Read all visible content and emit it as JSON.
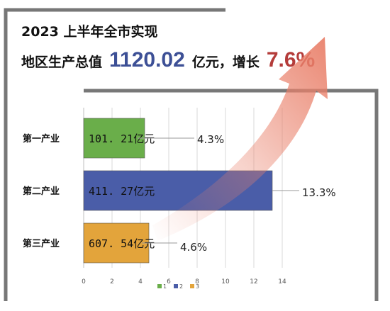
{
  "header": {
    "line1": "2023 上半年全市实现",
    "line2_prefix": "地区生产总值",
    "gdp_value": "1120.02",
    "gdp_unit": "亿元，增长",
    "growth_value": "7.6%"
  },
  "colors": {
    "primary": "#6aae4a",
    "secondary": "#4a5da8",
    "tertiary": "#e3a43b",
    "arrow": "#e9806a",
    "frame": "#777777"
  },
  "chart_data": {
    "type": "bar",
    "orientation": "horizontal",
    "categories": [
      "第一产业",
      "第二产业",
      "第三产业"
    ],
    "values": [
      4.3,
      13.3,
      4.6
    ],
    "value_labels": [
      "101. 21亿元",
      "411. 27亿元",
      "607. 54亿元"
    ],
    "growth_labels": [
      "4.3%",
      "13.3%",
      "4.6%"
    ],
    "xlim": [
      0,
      14
    ],
    "xticks": [
      0,
      2,
      4,
      6,
      8,
      10,
      12,
      14
    ],
    "legend": [
      "1",
      "2",
      "3"
    ],
    "legend_position": "bottom",
    "grid": true
  }
}
